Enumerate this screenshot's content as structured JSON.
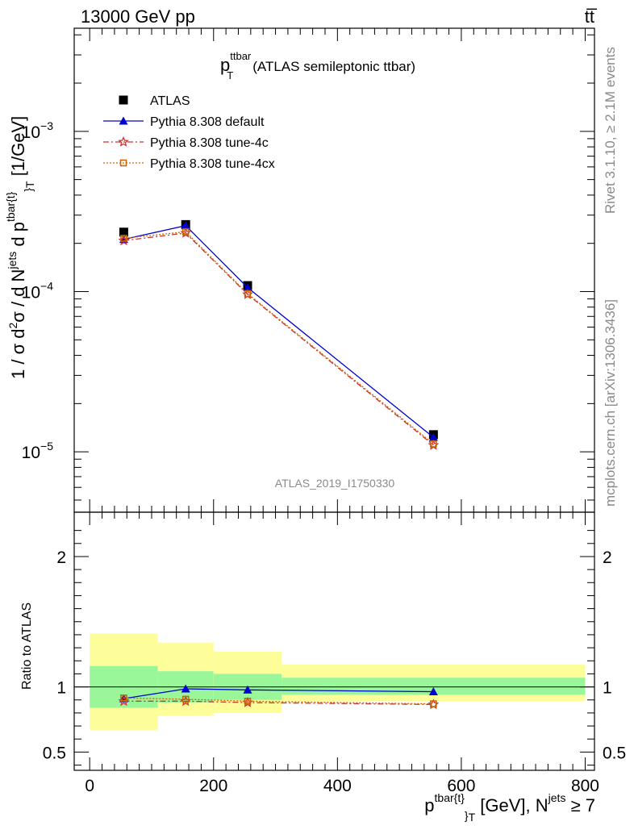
{
  "header": {
    "energy_label": "13000 GeV pp",
    "process_label": "tt̅"
  },
  "side": {
    "rivet_label": "Rivet 3.1.10, ≥ 2.1M events",
    "mcplots_label": "mcplots.cern.ch [arXiv:1306.3436]"
  },
  "chart_data": [
    {
      "type": "scatter",
      "panel": "main",
      "title_main": "p",
      "title_sup": "ttbar",
      "title_sub": "T",
      "title_rest": "(ATLAS semileptonic ttbar)",
      "watermark": "ATLAS_2019_I1750330",
      "ylabel": "1 / σ d²σ / d Nʲᵉᵗˢ d pᵗᵇᵃʳ⁽ᵗ⁾ₜ [1/GeV]",
      "ylabel_parts": {
        "a": "1 / σ d",
        "sup1": "2",
        "b": "σ / d N",
        "sup2": "jets",
        "c": " d p",
        "sup3": "tbar{t}",
        "sub3": "}",
        "sub4": "T",
        "d": " [1/GeV]"
      },
      "yscale": "log",
      "ylim": [
        4.2e-06,
        0.0044
      ],
      "xlim": [
        -25,
        815
      ],
      "y_tick_labels": [
        {
          "base": "10",
          "exp": "−5",
          "value": 1e-05
        },
        {
          "base": "10",
          "exp": "−4",
          "value": 0.0001
        },
        {
          "base": "10",
          "exp": "−3",
          "value": 0.001
        }
      ],
      "legend_position": "top-left",
      "series": [
        {
          "name": "ATLAS",
          "color": "#000000",
          "marker": "square",
          "x": [
            55,
            155,
            255,
            555
          ],
          "y": [
            0.000235,
            0.000262,
            0.000109,
            1.28e-05
          ]
        },
        {
          "name": "Pythia 8.308 default",
          "color": "#0000cc",
          "marker": "triangle",
          "line": "solid",
          "x": [
            55,
            155,
            255,
            555
          ],
          "y": [
            0.000212,
            0.000258,
            0.000106,
            1.23e-05
          ]
        },
        {
          "name": "Pythia 8.308 tune-4c",
          "color": "#cc3333",
          "marker": "star",
          "line": "dashdot",
          "x": [
            55,
            155,
            255,
            555
          ],
          "y": [
            0.000208,
            0.000232,
            9.6e-05,
            1.1e-05
          ]
        },
        {
          "name": "Pythia 8.308 tune-4cx",
          "color": "#cc6600",
          "marker": "open-square",
          "line": "dotted",
          "x": [
            55,
            155,
            255,
            555
          ],
          "y": [
            0.000215,
            0.000236,
            9.7e-05,
            1.12e-05
          ]
        }
      ]
    },
    {
      "type": "scatter",
      "panel": "ratio",
      "ylabel": "Ratio to ATLAS",
      "ylim": [
        0.36,
        2.34
      ],
      "xlim": [
        -25,
        815
      ],
      "y_ticks": [
        0.5,
        1,
        2
      ],
      "y_tick_labels": [
        "0.5",
        "1",
        "2"
      ],
      "x_ticks": [
        0,
        200,
        400,
        600,
        800
      ],
      "x_tick_labels": [
        "0",
        "200",
        "400",
        "600",
        "800"
      ],
      "xlabel_parts": {
        "a": "p",
        "sup1": "tbar{t}",
        "sub1": "}",
        "sub2": "T",
        "b": " [GeV], N",
        "sup2": "jets",
        "c": " ≥ 7"
      },
      "bins": [
        {
          "x_low": 0,
          "x_high": 110,
          "band_green": [
            0.84,
            1.16
          ],
          "band_yellow": [
            0.67,
            1.41
          ]
        },
        {
          "x_low": 110,
          "x_high": 200,
          "band_green": [
            0.88,
            1.12
          ],
          "band_yellow": [
            0.78,
            1.34
          ]
        },
        {
          "x_low": 200,
          "x_high": 310,
          "band_green": [
            0.9,
            1.1
          ],
          "band_yellow": [
            0.8,
            1.27
          ]
        },
        {
          "x_low": 310,
          "x_high": 800,
          "band_green": [
            0.94,
            1.07
          ],
          "band_yellow": [
            0.89,
            1.17
          ]
        }
      ],
      "series": [
        {
          "name": "Pythia 8.308 default",
          "color": "#0000cc",
          "marker": "triangle",
          "line": "solid",
          "x": [
            55,
            155,
            255,
            555
          ],
          "y": [
            0.91,
            0.985,
            0.977,
            0.963
          ]
        },
        {
          "name": "Pythia 8.308 tune-4c",
          "color": "#cc3333",
          "marker": "star",
          "line": "dashdot",
          "x": [
            55,
            155,
            255,
            555
          ],
          "y": [
            0.89,
            0.89,
            0.88,
            0.865
          ]
        },
        {
          "name": "Pythia 8.308 tune-4cx",
          "color": "#cc6600",
          "marker": "open-square",
          "line": "dotted",
          "x": [
            55,
            155,
            255,
            555
          ],
          "y": [
            0.915,
            0.905,
            0.89,
            0.87
          ]
        }
      ],
      "colors": {
        "band_green": "#99f79a",
        "band_yellow": "#fdfd99"
      }
    }
  ]
}
